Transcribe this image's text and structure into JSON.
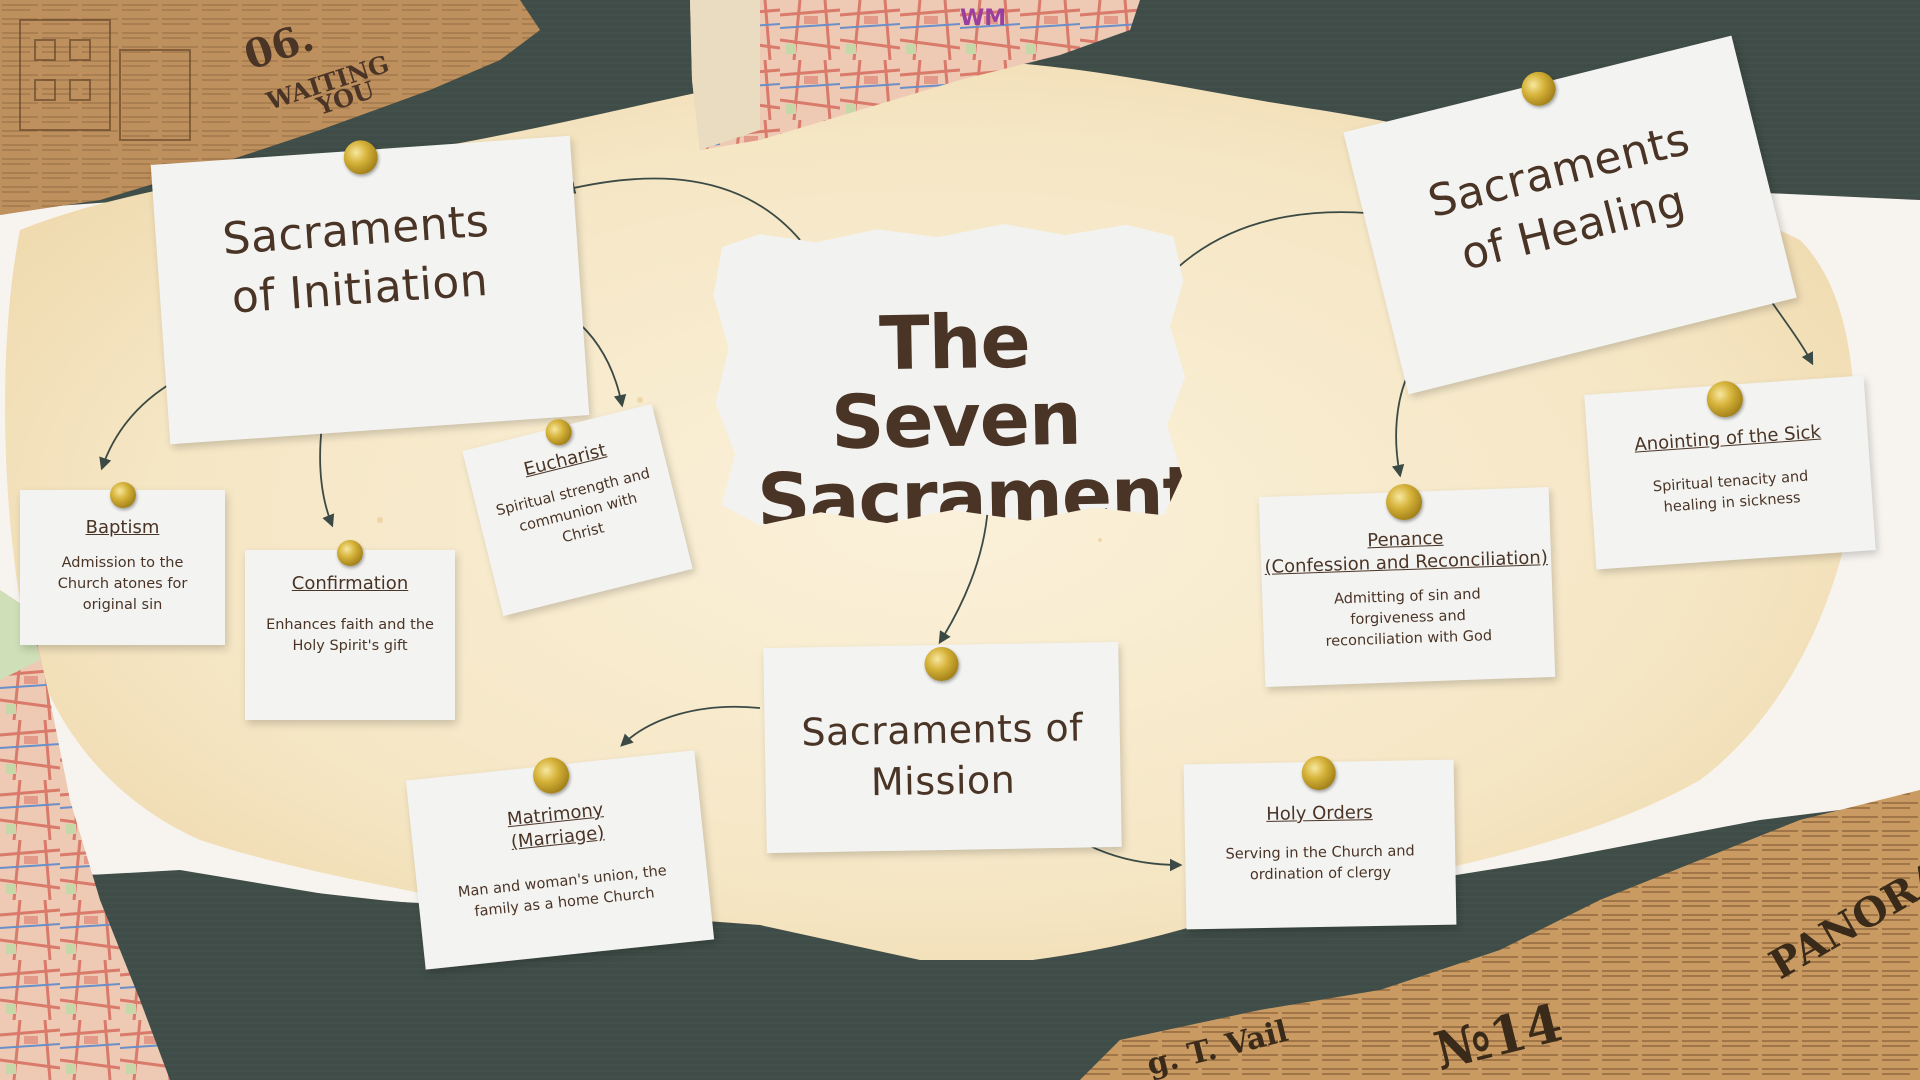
{
  "title": "The Seven Sacraments",
  "groups": {
    "initiation": "Sacraments of Initiation",
    "healing": "Sacraments of Healing",
    "mission": "Sacraments of Mission"
  },
  "sacraments": {
    "baptism": {
      "name": "Baptism",
      "desc": "Admission to the Church atones for original sin"
    },
    "confirmation": {
      "name": "Confirmation",
      "desc": "Enhances faith and the Holy Spirit's gift"
    },
    "eucharist": {
      "name": "Eucharist",
      "desc": "Spiritual strength and communion with Christ"
    },
    "penance": {
      "name_line1": "Penance",
      "name_line2": "(Confession and Reconciliation)",
      "desc": "Admitting of sin and forgiveness and reconciliation with God"
    },
    "anointing": {
      "name": "Anointing of the Sick",
      "desc": "Spiritual tenacity and healing in sickness"
    },
    "matrimony": {
      "name_line1": "Matrimony",
      "name_line2": "(Marriage)",
      "desc": "Man and woman's union, the family as a home Church"
    },
    "holy_orders": {
      "name": "Holy Orders",
      "desc": "Serving in the Church and ordination of clergy"
    }
  },
  "decor": {
    "top_left_text_1": "06.",
    "top_left_text_2": "WAITING",
    "top_left_text_3": "YOU",
    "newspaper_text_1": "PANORAMIC",
    "newspaper_text_2": "№14",
    "newspaper_text_3": "g. T. Vail",
    "map_label": "WM"
  },
  "colors": {
    "background_dark": "#3d4a45",
    "parchment": "#f6ead0",
    "note": "#f3f3f1",
    "text": "#4a3426",
    "pin": "#c9a52e",
    "arrow": "#3c4a45"
  }
}
